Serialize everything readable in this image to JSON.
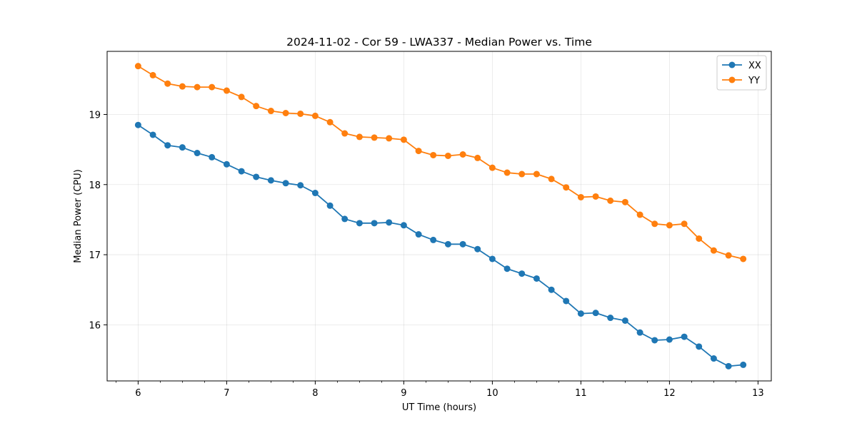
{
  "chart_data": {
    "type": "line",
    "title": "2024-11-02 - Cor 59 - LWA337 - Median Power vs. Time",
    "xlabel": "UT Time (hours)",
    "ylabel": "Median Power (CPU)",
    "xlim": [
      5.65,
      13.15
    ],
    "ylim": [
      15.2,
      19.9
    ],
    "xticks": [
      6,
      7,
      8,
      9,
      10,
      11,
      12,
      13
    ],
    "xtick_labels": [
      "6",
      "7",
      "8",
      "9",
      "10",
      "11",
      "12",
      "13"
    ],
    "yticks": [
      16,
      17,
      18,
      19
    ],
    "ytick_labels": [
      "16",
      "17",
      "18",
      "19"
    ],
    "grid": true,
    "legend_position": "top-right",
    "x": [
      6.0,
      6.167,
      6.333,
      6.5,
      6.667,
      6.833,
      7.0,
      7.167,
      7.333,
      7.5,
      7.667,
      7.833,
      8.0,
      8.167,
      8.333,
      8.5,
      8.667,
      8.833,
      9.0,
      9.167,
      9.333,
      9.5,
      9.667,
      9.833,
      10.0,
      10.167,
      10.333,
      10.5,
      10.667,
      10.833,
      11.0,
      11.167,
      11.333,
      11.5,
      11.667,
      11.833,
      12.0,
      12.167,
      12.333,
      12.5,
      12.667,
      12.833
    ],
    "series": [
      {
        "name": "XX",
        "color": "#1f77b4",
        "values": [
          18.85,
          18.71,
          18.56,
          18.53,
          18.45,
          18.39,
          18.29,
          18.19,
          18.11,
          18.06,
          18.02,
          17.99,
          17.88,
          17.7,
          17.51,
          17.45,
          17.45,
          17.46,
          17.42,
          17.29,
          17.21,
          17.15,
          17.15,
          17.08,
          16.94,
          16.8,
          16.73,
          16.66,
          16.5,
          16.34,
          16.16,
          16.17,
          16.1,
          16.06,
          15.89,
          15.78,
          15.79,
          15.83,
          15.69,
          15.52,
          15.41,
          15.43
        ]
      },
      {
        "name": "YY",
        "color": "#ff7f0e",
        "values": [
          19.69,
          19.56,
          19.44,
          19.4,
          19.39,
          19.39,
          19.34,
          19.25,
          19.12,
          19.05,
          19.02,
          19.01,
          18.98,
          18.89,
          18.73,
          18.68,
          18.67,
          18.66,
          18.64,
          18.48,
          18.42,
          18.41,
          18.43,
          18.38,
          18.24,
          18.17,
          18.15,
          18.15,
          18.08,
          17.96,
          17.82,
          17.83,
          17.77,
          17.75,
          17.57,
          17.44,
          17.42,
          17.44,
          17.23,
          17.06,
          16.99,
          16.94
        ]
      }
    ]
  }
}
